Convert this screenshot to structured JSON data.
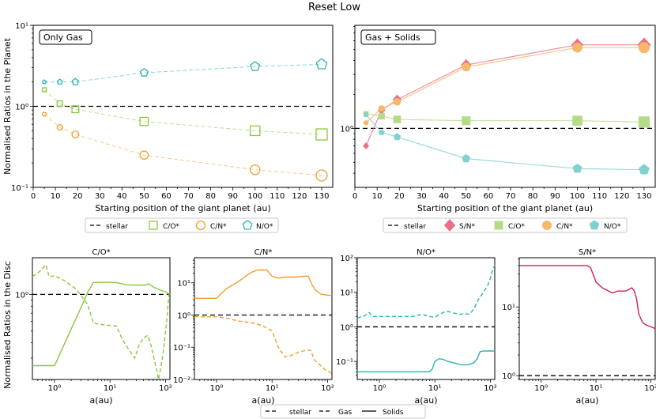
{
  "figure": {
    "title": "Reset Low"
  },
  "colors": {
    "co": "#8dc63f",
    "cn": "#f39c2e",
    "no": "#2bb5b0",
    "sn": "#d81b60",
    "sn_top": "#e8708a",
    "co_top": "#b4db86",
    "cn_top": "#f7b86a",
    "no_top": "#7fd2cf"
  },
  "legend_top": {
    "stellar": "stellar",
    "co": "C/O*",
    "cn": "C/N*",
    "no": "N/O*"
  },
  "legend_top_right": {
    "stellar": "stellar",
    "sn": "S/N*",
    "co": "C/O*",
    "cn": "C/N*",
    "no": "N/O*"
  },
  "legend_bottom": {
    "stellar": "stellar",
    "gas": "Gas",
    "solids": "Solids"
  },
  "chart_data": [
    {
      "type": "line",
      "panel": "Only Gas",
      "xlabel": "Starting position of the giant planet (au)",
      "ylabel": "Normalised Ratios in the Planet",
      "yscale": "log",
      "xlim": [
        0,
        135
      ],
      "ylim": [
        0.1,
        10
      ],
      "xticks": [
        "0",
        "10",
        "20",
        "30",
        "40",
        "50",
        "60",
        "70",
        "80",
        "90",
        "100",
        "110",
        "120",
        "130"
      ],
      "yticks": [
        "10⁻¹",
        "10⁰",
        "10¹"
      ],
      "x": [
        5,
        12,
        19,
        50,
        100,
        130
      ],
      "series": [
        {
          "name": "C/O*",
          "marker": "square",
          "values": [
            1.6,
            1.08,
            0.92,
            0.65,
            0.5,
            0.45
          ]
        },
        {
          "name": "C/N*",
          "marker": "circle",
          "values": [
            0.8,
            0.55,
            0.45,
            0.25,
            0.165,
            0.14
          ]
        },
        {
          "name": "N/O*",
          "marker": "pentagon",
          "values": [
            2.0,
            2.0,
            2.0,
            2.6,
            3.1,
            3.3
          ]
        }
      ],
      "stellar": 1.0
    },
    {
      "type": "line",
      "panel": "Gas + Solids",
      "xlabel": "Starting position of the giant planet (au)",
      "yscale": "log",
      "xlim": [
        0,
        135
      ],
      "ylim": [
        0.3,
        8.2
      ],
      "xticks": [
        "0",
        "10",
        "20",
        "30",
        "40",
        "50",
        "60",
        "70",
        "80",
        "90",
        "100",
        "110",
        "120",
        "130"
      ],
      "yticks": [
        "10⁰"
      ],
      "x": [
        5,
        12,
        19,
        50,
        100,
        130
      ],
      "series": [
        {
          "name": "S/N*",
          "marker": "diamond",
          "values": [
            0.7,
            1.45,
            1.8,
            3.65,
            5.5,
            5.5
          ]
        },
        {
          "name": "C/O*",
          "marker": "square",
          "values": [
            1.35,
            1.28,
            1.2,
            1.17,
            1.17,
            1.14
          ]
        },
        {
          "name": "C/N*",
          "marker": "circle",
          "values": [
            1.12,
            1.5,
            1.72,
            3.5,
            5.2,
            5.2
          ]
        },
        {
          "name": "N/O*",
          "marker": "pentagon",
          "values": [
            1.32,
            0.92,
            0.84,
            0.54,
            0.44,
            0.43
          ]
        }
      ],
      "stellar": 1.0
    },
    {
      "type": "line",
      "title": "C/O*",
      "xlabel": "a(au)",
      "ylabel": "Normalised Ratios in the Disc",
      "xscale": "log",
      "yscale": "log",
      "xlim": [
        0.4,
        120
      ],
      "ylim": [
        0.2,
        2.0
      ],
      "xticks": [
        "10⁰",
        "10¹",
        "10²"
      ],
      "yticks": [
        "10⁰"
      ],
      "stellar": 1.0,
      "series": [
        {
          "name": "Gas",
          "points": [
            [
              0.4,
              1.4
            ],
            [
              0.55,
              1.55
            ],
            [
              0.7,
              1.75
            ],
            [
              0.8,
              1.4
            ],
            [
              1.0,
              1.42
            ],
            [
              1.5,
              1.3
            ],
            [
              2.5,
              1.1
            ],
            [
              4.0,
              0.82
            ],
            [
              5.0,
              0.58
            ],
            [
              8,
              0.56
            ],
            [
              13,
              0.55
            ],
            [
              17,
              0.42
            ],
            [
              22,
              0.35
            ],
            [
              28,
              0.3
            ],
            [
              33,
              0.38
            ],
            [
              40,
              0.44
            ],
            [
              48,
              0.46
            ],
            [
              55,
              0.38
            ],
            [
              65,
              0.27
            ],
            [
              75,
              0.2
            ],
            [
              90,
              0.32
            ],
            [
              105,
              0.6
            ],
            [
              115,
              1.0
            ]
          ]
        },
        {
          "name": "Solids",
          "points": [
            [
              0.4,
              0.26
            ],
            [
              1.0,
              0.26
            ],
            [
              2.0,
              0.52
            ],
            [
              3.0,
              0.78
            ],
            [
              4.0,
              1.05
            ],
            [
              5.0,
              1.25
            ],
            [
              8,
              1.26
            ],
            [
              13,
              1.25
            ],
            [
              20,
              1.2
            ],
            [
              30,
              1.19
            ],
            [
              42,
              1.19
            ],
            [
              50,
              1.22
            ],
            [
              60,
              1.15
            ],
            [
              75,
              1.1
            ],
            [
              100,
              1.05
            ],
            [
              120,
              1.0
            ]
          ]
        }
      ]
    },
    {
      "type": "line",
      "title": "C/N*",
      "xlabel": "a(au)",
      "xscale": "log",
      "yscale": "log",
      "xlim": [
        0.4,
        120
      ],
      "ylim": [
        0.01,
        60
      ],
      "xticks": [
        "10⁰",
        "10¹",
        "10²"
      ],
      "yticks": [
        "10⁻²",
        "10⁻¹",
        "10⁰",
        "10¹"
      ],
      "stellar": 1.0,
      "series": [
        {
          "name": "Gas",
          "points": [
            [
              0.4,
              0.88
            ],
            [
              1.0,
              0.88
            ],
            [
              1.5,
              0.8
            ],
            [
              2.5,
              0.65
            ],
            [
              3.5,
              0.6
            ],
            [
              5.0,
              0.55
            ],
            [
              7,
              0.45
            ],
            [
              10,
              0.32
            ],
            [
              13,
              0.1
            ],
            [
              17,
              0.05
            ],
            [
              22,
              0.055
            ],
            [
              30,
              0.07
            ],
            [
              40,
              0.08
            ],
            [
              50,
              0.08
            ],
            [
              58,
              0.04
            ],
            [
              70,
              0.03
            ],
            [
              90,
              0.02
            ],
            [
              110,
              0.017
            ],
            [
              120,
              0.015
            ]
          ]
        },
        {
          "name": "Solids",
          "points": [
            [
              0.4,
              3.3
            ],
            [
              1.0,
              3.3
            ],
            [
              1.5,
              6.5
            ],
            [
              2.5,
              11
            ],
            [
              3.5,
              17
            ],
            [
              4.5,
              22
            ],
            [
              5.5,
              25
            ],
            [
              8,
              25
            ],
            [
              10,
              16
            ],
            [
              13,
              14
            ],
            [
              17,
              15
            ],
            [
              22,
              15
            ],
            [
              28,
              15
            ],
            [
              35,
              16
            ],
            [
              45,
              16
            ],
            [
              52,
              9
            ],
            [
              60,
              6
            ],
            [
              75,
              4.5
            ],
            [
              95,
              4.2
            ],
            [
              120,
              4.0
            ]
          ]
        }
      ]
    },
    {
      "type": "line",
      "title": "N/O*",
      "xlabel": "a(au)",
      "xscale": "log",
      "yscale": "log",
      "xlim": [
        0.4,
        120
      ],
      "ylim": [
        0.03,
        100
      ],
      "xticks": [
        "10⁰",
        "10¹",
        "10²"
      ],
      "yticks": [
        "10⁻¹",
        "10⁰",
        "10¹",
        "10²"
      ],
      "stellar": 1.0,
      "series": [
        {
          "name": "Gas",
          "points": [
            [
              0.4,
              1.8
            ],
            [
              0.55,
              2.1
            ],
            [
              0.65,
              2.6
            ],
            [
              0.75,
              2.0
            ],
            [
              1.0,
              2.0
            ],
            [
              2,
              2.0
            ],
            [
              4,
              2.0
            ],
            [
              6,
              2.3
            ],
            [
              8,
              2.0
            ],
            [
              10,
              1.9
            ],
            [
              14,
              2.6
            ],
            [
              17,
              2.8
            ],
            [
              22,
              2.5
            ],
            [
              28,
              2.3
            ],
            [
              35,
              2.4
            ],
            [
              42,
              2.3
            ],
            [
              50,
              3.2
            ],
            [
              60,
              6
            ],
            [
              75,
              10
            ],
            [
              90,
              16
            ],
            [
              100,
              25
            ],
            [
              110,
              45
            ],
            [
              120,
              60
            ]
          ]
        },
        {
          "name": "Solids",
          "points": [
            [
              0.4,
              0.05
            ],
            [
              1.0,
              0.05
            ],
            [
              3,
              0.05
            ],
            [
              5,
              0.05
            ],
            [
              8,
              0.05
            ],
            [
              9,
              0.06
            ],
            [
              10,
              0.1
            ],
            [
              12,
              0.12
            ],
            [
              14,
              0.115
            ],
            [
              17,
              0.1
            ],
            [
              22,
              0.09
            ],
            [
              30,
              0.08
            ],
            [
              40,
              0.08
            ],
            [
              50,
              0.09
            ],
            [
              58,
              0.12
            ],
            [
              65,
              0.19
            ],
            [
              75,
              0.2
            ],
            [
              90,
              0.2
            ],
            [
              110,
              0.2
            ],
            [
              120,
              0.2
            ]
          ]
        }
      ]
    },
    {
      "type": "line",
      "title": "S/N*",
      "xlabel": "a(au)",
      "xscale": "log",
      "yscale": "log",
      "xlim": [
        0.4,
        120
      ],
      "ylim": [
        0.88,
        52
      ],
      "xticks": [
        "10⁰",
        "10¹",
        "10²"
      ],
      "yticks": [
        "10⁰",
        "10¹"
      ],
      "stellar": 1.0,
      "series": [
        {
          "name": "Solids",
          "points": [
            [
              0.4,
              40
            ],
            [
              2,
              40
            ],
            [
              5,
              40
            ],
            [
              7,
              40
            ],
            [
              8,
              37
            ],
            [
              10,
              23
            ],
            [
              13,
              19
            ],
            [
              17,
              17
            ],
            [
              20,
              16
            ],
            [
              25,
              17
            ],
            [
              35,
              17
            ],
            [
              45,
              19
            ],
            [
              50,
              17
            ],
            [
              55,
              13
            ],
            [
              60,
              8
            ],
            [
              70,
              6
            ],
            [
              80,
              5.5
            ],
            [
              95,
              5.2
            ],
            [
              110,
              5.0
            ],
            [
              120,
              4.8
            ]
          ]
        }
      ]
    }
  ]
}
